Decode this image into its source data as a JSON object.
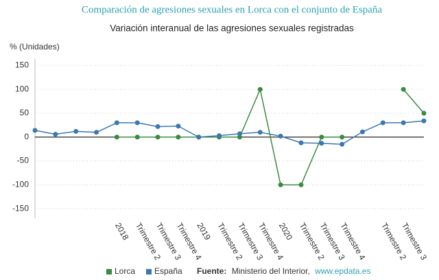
{
  "chart_data": {
    "type": "line",
    "title": "Comparación de agresiones sexuales en Lorca con el conjunto de España",
    "subtitle": "Variación interanual de las agresiones sexuales registradas",
    "y_label": "% (Unidades)",
    "categories": [
      null,
      null,
      null,
      null,
      "2018",
      "Trimestre 2",
      "Trimestre 3",
      "Trimestre 4",
      "2019",
      "Trimestre 2",
      "Trimestre 3",
      "Trimestre 4",
      "2020",
      "Trimestre 2",
      "Trimestre 3",
      "Trimestre 4",
      null,
      "Trimestre 2",
      "Trimestre 3",
      null
    ],
    "series": [
      {
        "name": "Lorca",
        "color": "#3a8a3f",
        "values": [
          null,
          null,
          null,
          null,
          0,
          0,
          0,
          0,
          0,
          0,
          0,
          100,
          -100,
          -100,
          0,
          0,
          null,
          null,
          100,
          50
        ]
      },
      {
        "name": "España",
        "color": "#3b78b0",
        "values": [
          14,
          6,
          12,
          10,
          30,
          30,
          22,
          23,
          0,
          3,
          7,
          10,
          2,
          -12,
          -13,
          -15,
          11,
          30,
          30,
          34
        ]
      }
    ],
    "ylim": [
      -170,
      165
    ],
    "yticks": [
      -150,
      -100,
      -50,
      0,
      50,
      100,
      150
    ],
    "grid": true,
    "source_label": "Fuente:",
    "source": "Ministerio del Interior,",
    "source_link": "www.epdata.es"
  }
}
